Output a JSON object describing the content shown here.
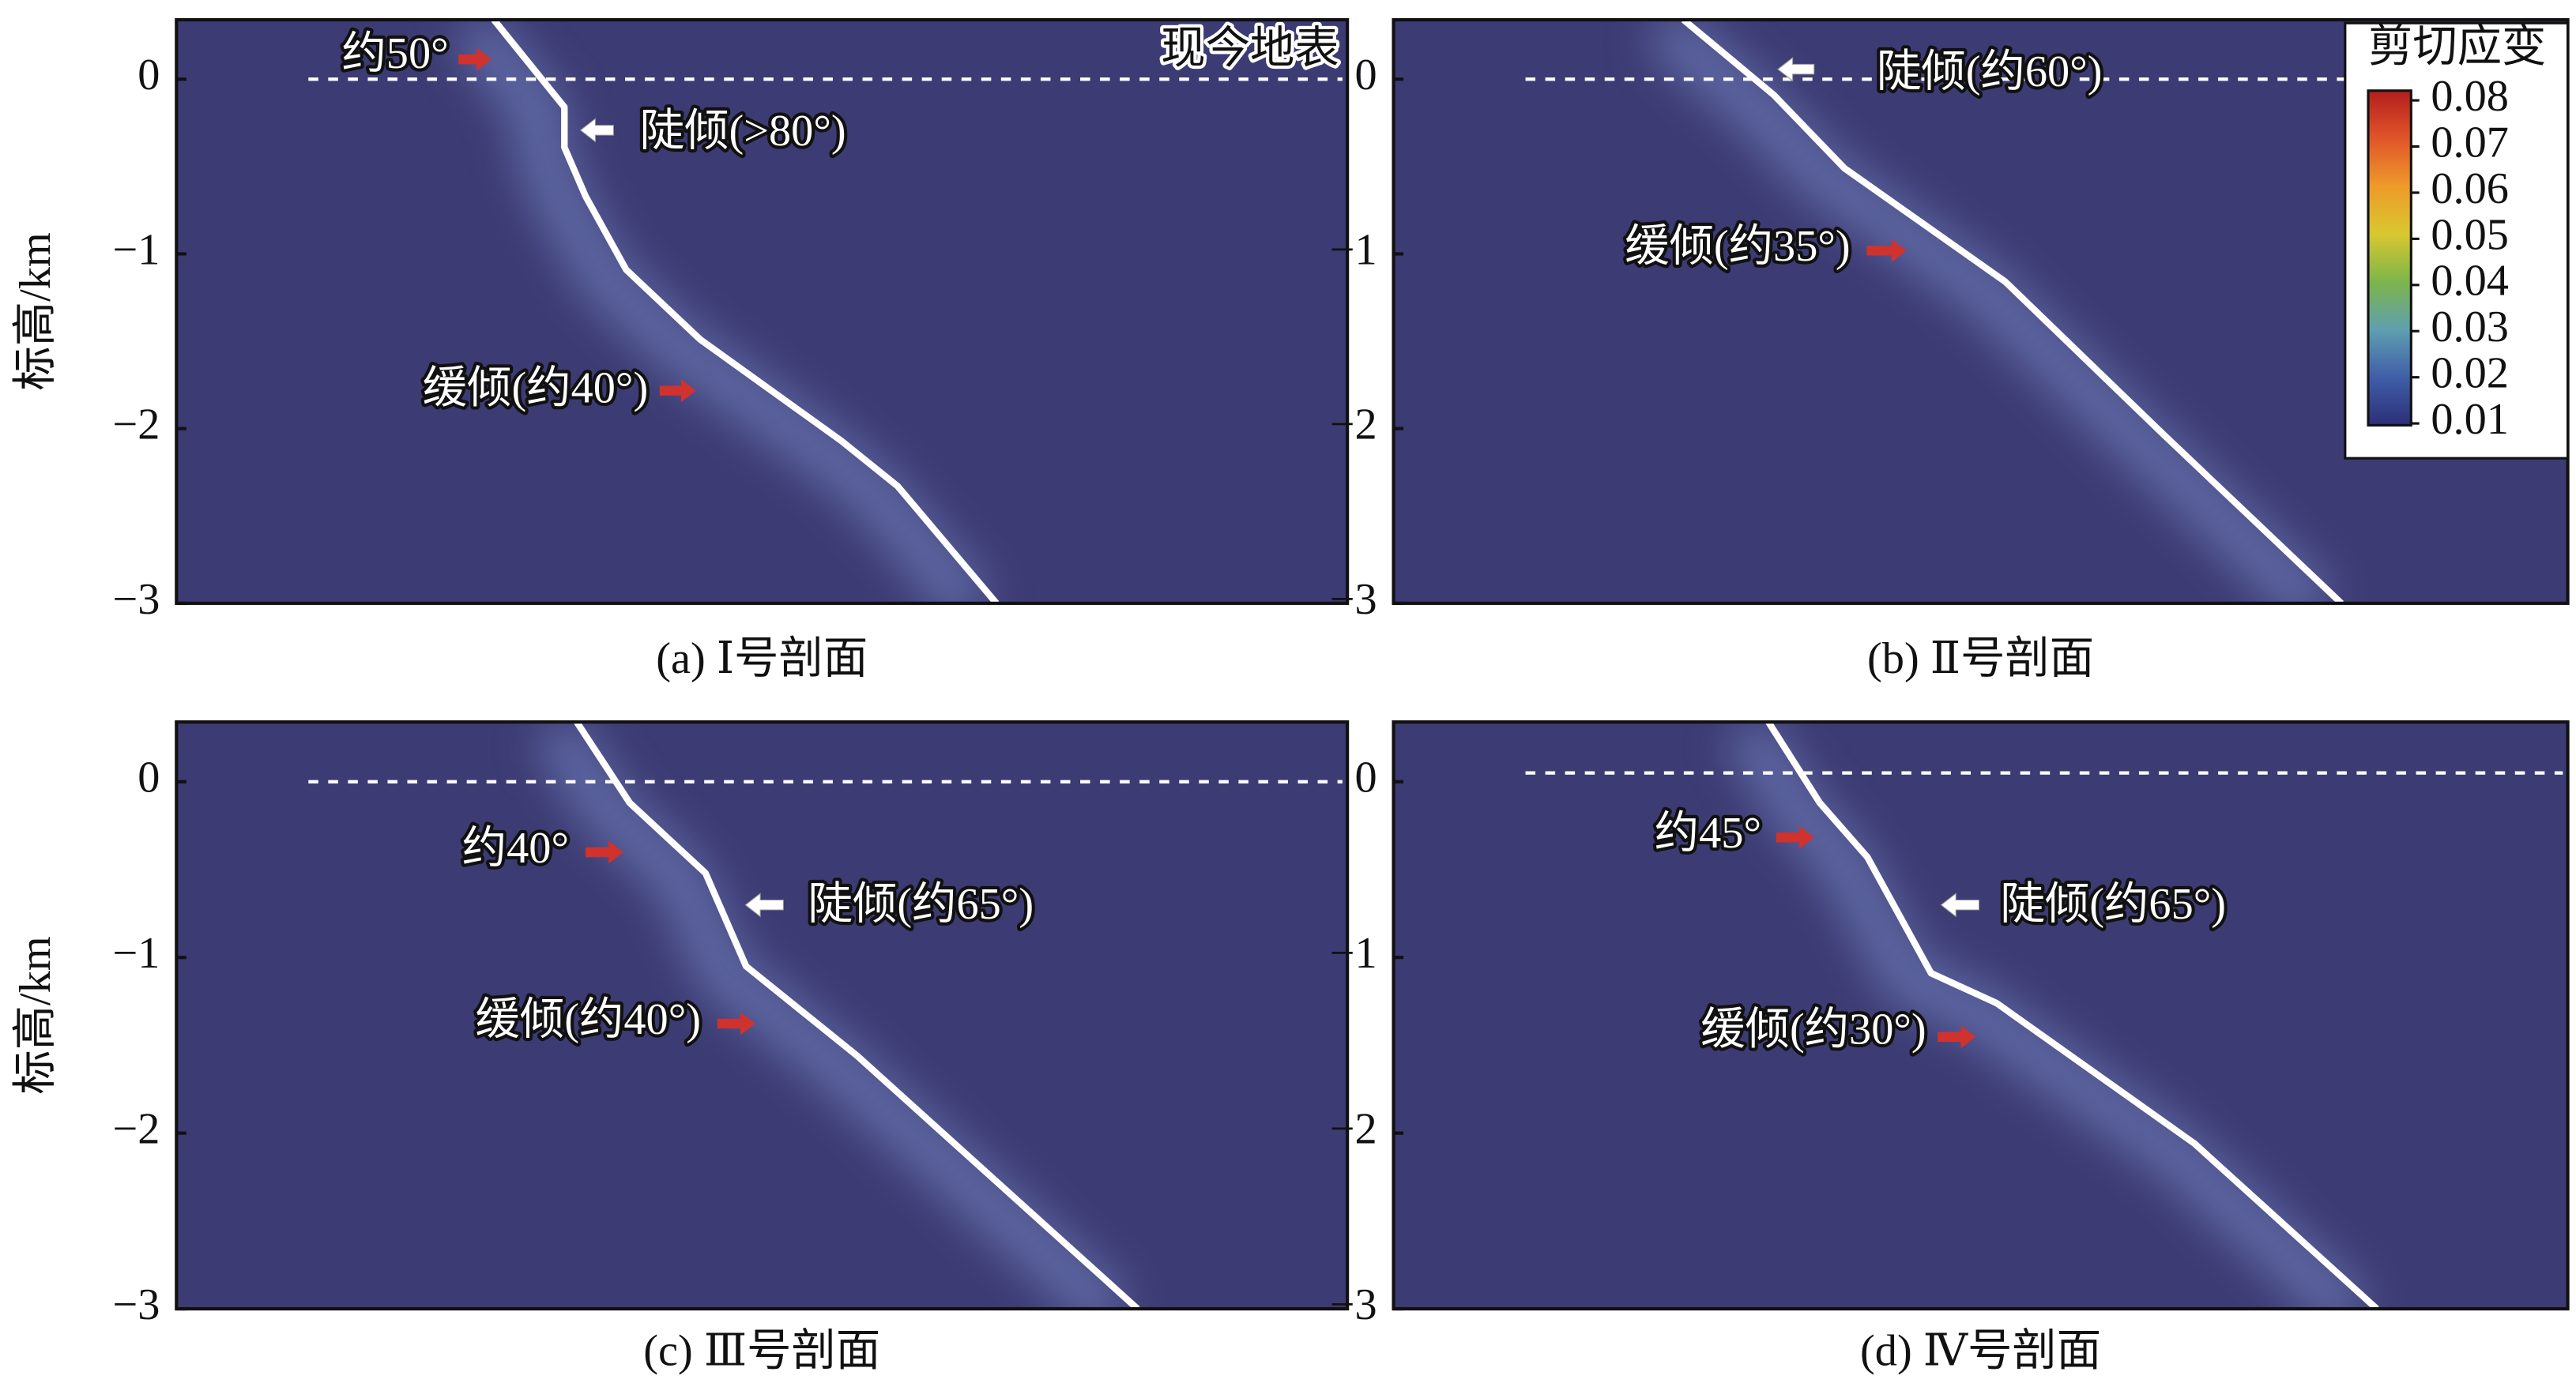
{
  "chart_data": [
    {
      "type": "fault-profile",
      "caption": "(a) Ⅰ号剖面",
      "ylabel": "标高/km",
      "ylim": [
        -3,
        0.34
      ],
      "yticks": [
        {
          "value": 0,
          "label": "0"
        },
        {
          "value": -1,
          "label": "−1"
        },
        {
          "value": -2,
          "label": "−2"
        },
        {
          "value": -3,
          "label": "−3"
        }
      ],
      "xlim": [
        0,
        6.64
      ],
      "fault": {
        "x": [
          1.8,
          2.16,
          2.2,
          2.2,
          2.32,
          2.55,
          2.97,
          3.77,
          4.09,
          4.65
        ],
        "y": [
          0.34,
          -0.11,
          -0.16,
          -0.39,
          -0.67,
          -1.09,
          -1.49,
          -2.07,
          -2.33,
          -3
        ]
      },
      "surface": 0,
      "surface_label": "现今地表",
      "annotations": [
        {
          "text": "约50°",
          "arrow": "#d0322d"
        },
        {
          "text": "陡倾(>80°)",
          "arrow": "#ffffff"
        },
        {
          "text": "缓倾(约40°)",
          "arrow": "#d0322d"
        }
      ],
      "color": "#3d3b73",
      "glow_color": "#7f95d4",
      "line_color": "#ffffff"
    },
    {
      "type": "fault-profile",
      "caption": "(b) Ⅱ号剖面",
      "ylim": [
        -3,
        0.34
      ],
      "yticks": [
        {
          "value": 0,
          "label": "0"
        },
        {
          "value": -1,
          "label": "−1"
        },
        {
          "value": -2,
          "label": "−2"
        },
        {
          "value": -3,
          "label": "−3"
        }
      ],
      "xlim": [
        0,
        6.64
      ],
      "fault": {
        "x": [
          1.64,
          2.15,
          2.55,
          3.46,
          4.35,
          5.36
        ],
        "y": [
          0.34,
          -0.09,
          -0.51,
          -1.16,
          -2.03,
          -3
        ]
      },
      "surface": 0,
      "annotations": [
        {
          "text": "陡倾(约60°)",
          "arrow": "#ffffff"
        },
        {
          "text": "缓倾(约35°)",
          "arrow": "#d0322d"
        }
      ],
      "color": "#3d3b73",
      "glow_color": "#7f95d4",
      "line_color": "#ffffff",
      "colorbar": {
        "title": "剪切应变",
        "lim": [
          0.0096,
          0.0821
        ],
        "ticks": [
          0.08,
          0.07,
          0.06,
          0.05,
          0.04,
          0.03,
          0.02,
          0.01
        ],
        "colors": [
          "#2c2f78",
          "#3f5ea8",
          "#5f9fb0",
          "#7db54a",
          "#d8c830",
          "#ee9a2a",
          "#e0552a",
          "#b31d1d"
        ]
      }
    },
    {
      "type": "fault-profile",
      "caption": "(c) Ⅲ号剖面",
      "ylabel": "标高/km",
      "ylim": [
        -3,
        0.34
      ],
      "yticks": [
        {
          "value": 0,
          "label": "0"
        },
        {
          "value": -1,
          "label": "−1"
        },
        {
          "value": -2,
          "label": "−2"
        },
        {
          "value": -3,
          "label": "−3"
        }
      ],
      "xlim": [
        0,
        6.64
      ],
      "fault": {
        "x": [
          2.27,
          2.57,
          3.0,
          3.23,
          3.86,
          5.45
        ],
        "y": [
          0.34,
          -0.12,
          -0.52,
          -1.05,
          -1.56,
          -3
        ]
      },
      "surface": 0,
      "annotations": [
        {
          "text": "约40°",
          "arrow": "#d0322d"
        },
        {
          "text": "陡倾(约65°)",
          "arrow": "#ffffff"
        },
        {
          "text": "缓倾(约40°)",
          "arrow": "#d0322d"
        }
      ],
      "color": "#3d3b73",
      "glow_color": "#7f95d4",
      "line_color": "#ffffff"
    },
    {
      "type": "fault-profile",
      "caption": "(d) Ⅳ号剖面",
      "ylim": [
        -3,
        0.34
      ],
      "yticks": [
        {
          "value": 0,
          "label": "0"
        },
        {
          "value": -1,
          "label": "−1"
        },
        {
          "value": -2,
          "label": "−2"
        },
        {
          "value": -3,
          "label": "−3"
        }
      ],
      "xlim": [
        0,
        6.64
      ],
      "fault": {
        "x": [
          2.12,
          2.41,
          2.68,
          3.04,
          3.41,
          4.53,
          5.56
        ],
        "y": [
          0.34,
          -0.12,
          -0.43,
          -1.09,
          -1.26,
          -2.06,
          -3
        ]
      },
      "surface": 0.05,
      "annotations": [
        {
          "text": "约45°",
          "arrow": "#d0322d"
        },
        {
          "text": "陡倾(约65°)",
          "arrow": "#ffffff"
        },
        {
          "text": "缓倾(约30°)",
          "arrow": "#d0322d"
        }
      ],
      "color": "#3d3b73",
      "glow_color": "#7f95d4",
      "line_color": "#ffffff"
    }
  ]
}
